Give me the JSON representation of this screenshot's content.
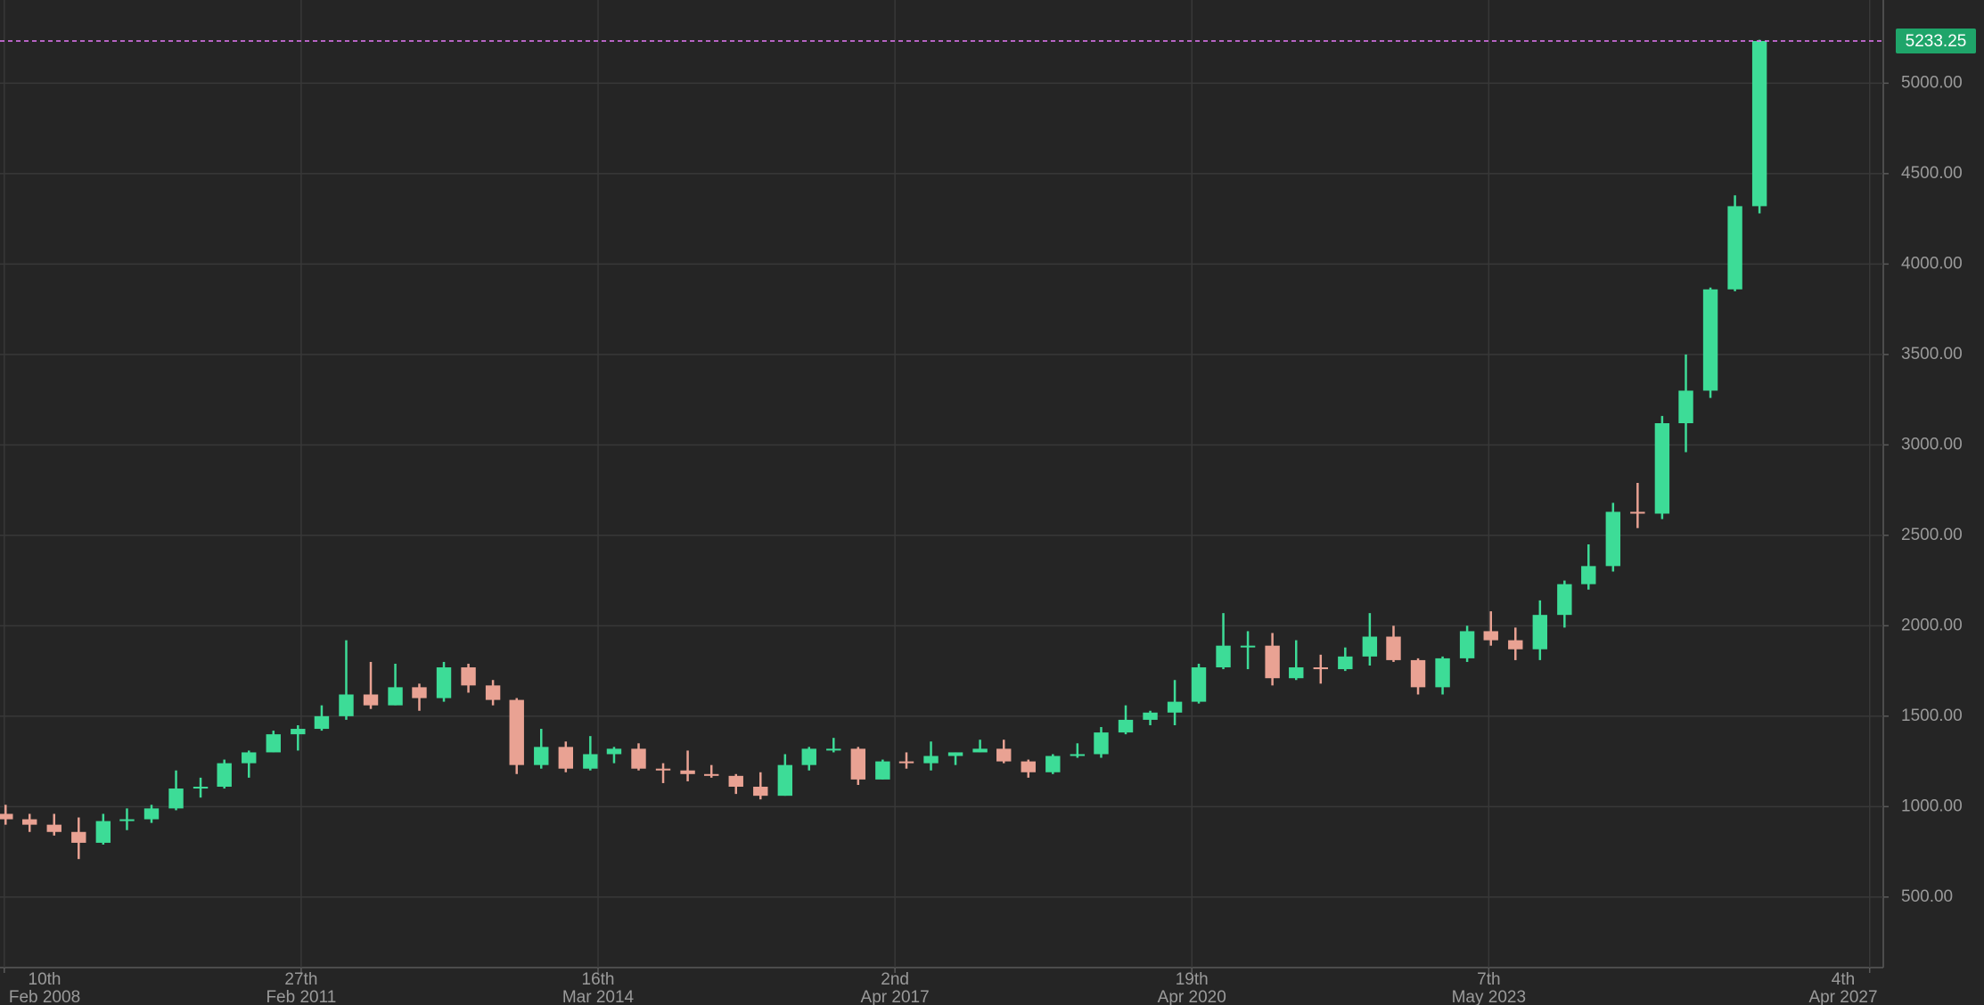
{
  "chart_data": {
    "type": "candlestick",
    "up_color": "#3ddc97",
    "down_color": "#e9a293",
    "x": [
      "2008-02-15",
      "2008-05-15",
      "2008-08-15",
      "2008-11-15",
      "2009-02-15",
      "2009-05-15",
      "2009-08-15",
      "2009-11-15",
      "2010-02-15",
      "2010-05-15",
      "2010-08-15",
      "2010-11-15",
      "2011-02-15",
      "2011-05-15",
      "2011-08-15",
      "2011-11-15",
      "2012-02-15",
      "2012-05-15",
      "2012-08-15",
      "2012-11-15",
      "2013-02-15",
      "2013-05-15",
      "2013-08-15",
      "2013-11-15",
      "2014-02-15",
      "2014-05-15",
      "2014-08-15",
      "2014-11-15",
      "2015-02-15",
      "2015-05-15",
      "2015-08-15",
      "2015-11-15",
      "2016-02-15",
      "2016-05-15",
      "2016-08-15",
      "2016-11-15",
      "2017-02-15",
      "2017-05-15",
      "2017-08-15",
      "2017-11-15",
      "2018-02-15",
      "2018-05-15",
      "2018-08-15",
      "2018-11-15",
      "2019-02-15",
      "2019-05-15",
      "2019-08-15",
      "2019-11-15",
      "2020-02-15",
      "2020-05-15",
      "2020-08-15",
      "2020-11-15",
      "2021-02-15",
      "2021-05-15",
      "2021-08-15",
      "2021-11-15",
      "2022-02-15",
      "2022-05-15",
      "2022-08-15",
      "2022-11-15",
      "2023-02-15",
      "2023-05-15",
      "2023-08-15",
      "2023-11-15",
      "2024-02-15",
      "2024-05-15",
      "2024-08-15",
      "2024-11-15",
      "2025-02-15",
      "2025-05-15",
      "2025-08-15",
      "2025-11-15",
      "2026-02-15"
    ],
    "open": [
      960,
      930,
      900,
      860,
      800,
      920,
      930,
      990,
      1100,
      1110,
      1240,
      1300,
      1400,
      1430,
      1500,
      1620,
      1560,
      1660,
      1600,
      1770,
      1670,
      1590,
      1230,
      1330,
      1210,
      1290,
      1320,
      1210,
      1200,
      1180,
      1170,
      1110,
      1060,
      1230,
      1320,
      1320,
      1150,
      1250,
      1240,
      1280,
      1300,
      1320,
      1250,
      1190,
      1280,
      1290,
      1410,
      1480,
      1520,
      1580,
      1770,
      1890,
      1890,
      1710,
      1770,
      1760,
      1830,
      1940,
      1810,
      1660,
      1820,
      1970,
      1920,
      1870,
      2060,
      2230,
      2330,
      2630,
      2620,
      3120,
      3300,
      3860,
      4320
    ],
    "high": [
      1010,
      960,
      960,
      940,
      960,
      990,
      1010,
      1200,
      1160,
      1260,
      1310,
      1420,
      1450,
      1560,
      1920,
      1800,
      1790,
      1680,
      1800,
      1790,
      1700,
      1600,
      1430,
      1360,
      1390,
      1330,
      1350,
      1240,
      1310,
      1230,
      1180,
      1190,
      1290,
      1330,
      1380,
      1330,
      1260,
      1300,
      1360,
      1300,
      1370,
      1370,
      1260,
      1290,
      1350,
      1440,
      1560,
      1530,
      1700,
      1790,
      2070,
      1970,
      1960,
      1920,
      1840,
      1880,
      2070,
      2000,
      1820,
      1830,
      2000,
      2080,
      1990,
      2140,
      2250,
      2450,
      2680,
      2790,
      3160,
      3500,
      3870,
      4380,
      5240
    ],
    "low": [
      900,
      860,
      840,
      710,
      790,
      870,
      910,
      980,
      1050,
      1100,
      1160,
      1300,
      1310,
      1420,
      1480,
      1540,
      1560,
      1530,
      1580,
      1630,
      1560,
      1180,
      1210,
      1190,
      1200,
      1240,
      1200,
      1130,
      1140,
      1160,
      1070,
      1040,
      1060,
      1200,
      1300,
      1120,
      1150,
      1210,
      1200,
      1230,
      1300,
      1240,
      1160,
      1180,
      1270,
      1270,
      1400,
      1450,
      1450,
      1570,
      1760,
      1760,
      1670,
      1700,
      1680,
      1750,
      1780,
      1800,
      1620,
      1620,
      1800,
      1890,
      1810,
      1810,
      1990,
      2200,
      2300,
      2540,
      2590,
      2960,
      3260,
      3850,
      4280
    ],
    "close": [
      930,
      900,
      860,
      800,
      920,
      930,
      990,
      1100,
      1110,
      1240,
      1300,
      1400,
      1430,
      1500,
      1620,
      1560,
      1660,
      1600,
      1770,
      1670,
      1590,
      1230,
      1330,
      1210,
      1290,
      1320,
      1210,
      1200,
      1180,
      1170,
      1110,
      1060,
      1230,
      1320,
      1320,
      1150,
      1250,
      1240,
      1280,
      1300,
      1320,
      1250,
      1190,
      1280,
      1290,
      1410,
      1480,
      1520,
      1580,
      1770,
      1890,
      1890,
      1710,
      1770,
      1760,
      1830,
      1940,
      1810,
      1660,
      1820,
      1970,
      1920,
      1870,
      2060,
      2230,
      2330,
      2630,
      2620,
      3120,
      3300,
      3860,
      4320,
      5233.25
    ],
    "xlim": [
      "2008-01-25",
      "2027-05-25"
    ],
    "xticks": [
      {
        "value": "2008-02-10",
        "label": [
          "10th",
          "Feb 2008"
        ]
      },
      {
        "value": "2011-02-27",
        "label": [
          "27th",
          "Feb 2011"
        ]
      },
      {
        "value": "2014-03-16",
        "label": [
          "16th",
          "Mar 2014"
        ]
      },
      {
        "value": "2017-04-02",
        "label": [
          "2nd",
          "Apr 2017"
        ]
      },
      {
        "value": "2020-04-19",
        "label": [
          "19th",
          "Apr 2020"
        ]
      },
      {
        "value": "2023-05-07",
        "label": [
          "7th",
          "May 2023"
        ]
      },
      {
        "value": "2027-04-04",
        "label": [
          "4th",
          "Apr 2027"
        ]
      }
    ],
    "ylim": [
      110,
      5460
    ],
    "yticks": [
      {
        "value": 500,
        "label": "500.00"
      },
      {
        "value": 1000,
        "label": "1000.00"
      },
      {
        "value": 1500,
        "label": "1500.00"
      },
      {
        "value": 2000,
        "label": "2000.00"
      },
      {
        "value": 2500,
        "label": "2500.00"
      },
      {
        "value": 3000,
        "label": "3000.00"
      },
      {
        "value": 3500,
        "label": "3500.00"
      },
      {
        "value": 4000,
        "label": "4000.00"
      },
      {
        "value": 4500,
        "label": "4500.00"
      },
      {
        "value": 5000,
        "label": "5000.00"
      }
    ],
    "grid": true,
    "price_line": {
      "value": 5233.25,
      "color": "#e879f9",
      "label_color": "#1fa56a"
    }
  }
}
